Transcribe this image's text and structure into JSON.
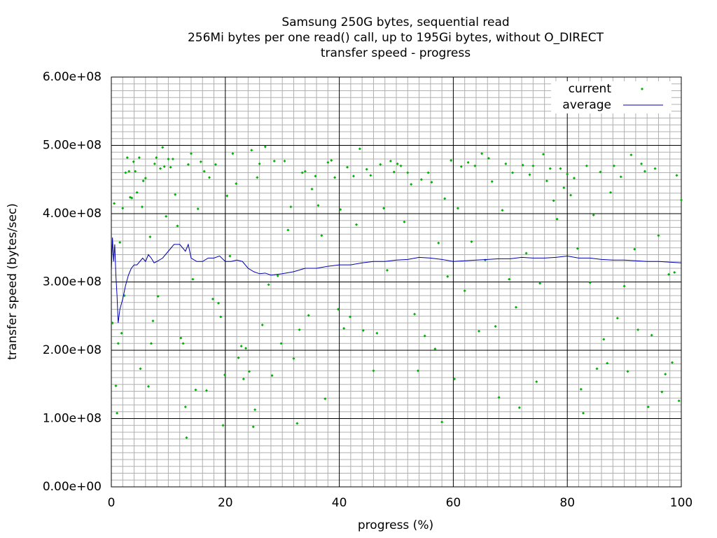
{
  "chart_data": {
    "type": "scatter",
    "title": [
      "Samsung 250G bytes, sequential read",
      "256Mi bytes per one read() call, up to 195Gi bytes, without O_DIRECT",
      "transfer speed - progress"
    ],
    "xlabel": "progress (%)",
    "ylabel": "transfer speed (bytes/sec)",
    "xlim": [
      0,
      100
    ],
    "xticks": [
      0,
      20,
      40,
      60,
      80,
      100
    ],
    "ylim": [
      0,
      600000000.0
    ],
    "yticks": [
      {
        "value": 0,
        "label": "0.00e+00"
      },
      {
        "value": 100000000.0,
        "label": "1.00e+08"
      },
      {
        "value": 200000000.0,
        "label": "2.00e+08"
      },
      {
        "value": 300000000.0,
        "label": "3.00e+08"
      },
      {
        "value": 400000000.0,
        "label": "4.00e+08"
      },
      {
        "value": 500000000.0,
        "label": "5.00e+08"
      },
      {
        "value": 600000000.0,
        "label": "6.00e+08"
      }
    ],
    "grid": true,
    "minor_grid_divisions": 10,
    "legend": "top-right",
    "series": [
      {
        "name": "current",
        "color": "#00b000",
        "style": "points",
        "x": [
          0.2,
          0.5,
          0.8,
          1,
          1.2,
          1.5,
          1.8,
          2,
          2.3,
          2.5,
          2.8,
          3.1,
          3.3,
          3.6,
          3.9,
          4.2,
          4.5,
          4.9,
          5.1,
          5.4,
          5.6,
          6,
          6.5,
          6.8,
          7,
          7.3,
          7.6,
          7.9,
          8.2,
          8.6,
          9,
          9.3,
          9.6,
          10,
          10.4,
          10.8,
          11.2,
          11.6,
          12.2,
          12.6,
          13,
          13.2,
          13.5,
          14,
          14.3,
          14.8,
          15.2,
          15.7,
          16.3,
          16.7,
          17.2,
          17.8,
          18.3,
          18.8,
          19.2,
          19.6,
          19.9,
          20.3,
          20.8,
          21.3,
          21.9,
          22.3,
          22.8,
          23.2,
          23.6,
          24.2,
          24.6,
          24.9,
          25.2,
          25.6,
          26,
          26.5,
          27,
          27.6,
          28.2,
          28.6,
          29.2,
          29.8,
          30.4,
          31,
          31.5,
          32,
          32.6,
          33,
          33.5,
          34,
          34.6,
          35.2,
          35.8,
          36.3,
          36.9,
          37.5,
          38,
          38.6,
          39.2,
          39.8,
          40.2,
          40.8,
          41.4,
          41.9,
          42.5,
          43,
          43.6,
          44.2,
          44.8,
          45.5,
          46,
          46.6,
          47.2,
          47.8,
          48.4,
          49,
          49.6,
          50.2,
          50.8,
          51.4,
          52,
          52.6,
          53.2,
          53.8,
          54.4,
          55,
          55.6,
          56.2,
          56.8,
          57.4,
          58,
          58.5,
          59,
          59.6,
          60.2,
          60.8,
          61.4,
          62,
          62.6,
          63.2,
          63.8,
          64.5,
          65,
          65.6,
          66.2,
          66.8,
          67.4,
          68,
          68.6,
          69.2,
          69.8,
          70.4,
          71,
          71.6,
          72.2,
          72.8,
          73.4,
          74,
          74.6,
          75.2,
          75.8,
          76.4,
          77,
          77.6,
          78.2,
          78.8,
          79.4,
          80,
          80.6,
          81.2,
          81.8,
          82.4,
          82.8,
          83.4,
          84,
          84.6,
          85.2,
          85.8,
          86.4,
          87,
          87.6,
          88.2,
          88.8,
          89.4,
          90,
          90.6,
          91.2,
          91.8,
          92.4,
          93,
          93.6,
          94.2,
          94.8,
          95.4,
          96,
          96.6,
          97.2,
          97.8,
          98.4,
          98.8,
          99.2,
          99.6,
          100
        ],
        "values": [
          240000000.0,
          415000000.0,
          148000000.0,
          108000000.0,
          210000000.0,
          358000000.0,
          225000000.0,
          408000000.0,
          280000000.0,
          460000000.0,
          482000000.0,
          462000000.0,
          424000000.0,
          423000000.0,
          476000000.0,
          462000000.0,
          431000000.0,
          482000000.0,
          173000000.0,
          410000000.0,
          448000000.0,
          452000000.0,
          147000000.0,
          366000000.0,
          210000000.0,
          243000000.0,
          473000000.0,
          482000000.0,
          279000000.0,
          466000000.0,
          497000000.0,
          469000000.0,
          396000000.0,
          480000000.0,
          468000000.0,
          480000000.0,
          428000000.0,
          382000000.0,
          218000000.0,
          210000000.0,
          117000000.0,
          72000000.0,
          472000000.0,
          488000000.0,
          304000000.0,
          142000000.0,
          407000000.0,
          476000000.0,
          462000000.0,
          141000000.0,
          453000000.0,
          275000000.0,
          472000000.0,
          269000000.0,
          249000000.0,
          90000000.0,
          164000000.0,
          426000000.0,
          338000000.0,
          488000000.0,
          444000000.0,
          189000000.0,
          206000000.0,
          158000000.0,
          203000000.0,
          169000000.0,
          493000000.0,
          88000000.0,
          113000000.0,
          453000000.0,
          473000000.0,
          237000000.0,
          498000000.0,
          296000000.0,
          163000000.0,
          477000000.0,
          309000000.0,
          210000000.0,
          477000000.0,
          376000000.0,
          410000000.0,
          188000000.0,
          93000000.0,
          230000000.0,
          460000000.0,
          462000000.0,
          251000000.0,
          436000000.0,
          455000000.0,
          412000000.0,
          368000000.0,
          129000000.0,
          475000000.0,
          478000000.0,
          453000000.0,
          260000000.0,
          406000000.0,
          232000000.0,
          468000000.0,
          249000000.0,
          455000000.0,
          384000000.0,
          495000000.0,
          229000000.0,
          465000000.0,
          456000000.0,
          170000000.0,
          225000000.0,
          472000000.0,
          408000000.0,
          317000000.0,
          477000000.0,
          461000000.0,
          473000000.0,
          470000000.0,
          388000000.0,
          460000000.0,
          443000000.0,
          253000000.0,
          170000000.0,
          450000000.0,
          221000000.0,
          460000000.0,
          446000000.0,
          202000000.0,
          357000000.0,
          95000000.0,
          422000000.0,
          308000000.0,
          478000000.0,
          158000000.0,
          408000000.0,
          469000000.0,
          287000000.0,
          475000000.0,
          359000000.0,
          470000000.0,
          228000000.0,
          488000000.0,
          332000000.0,
          481000000.0,
          447000000.0,
          235000000.0,
          131000000.0,
          405000000.0,
          473000000.0,
          304000000.0,
          460000000.0,
          263000000.0,
          116000000.0,
          471000000.0,
          342000000.0,
          457000000.0,
          470000000.0,
          154000000.0,
          298000000.0,
          487000000.0,
          448000000.0,
          466000000.0,
          419000000.0,
          392000000.0,
          466000000.0,
          438000000.0,
          458000000.0,
          427000000.0,
          452000000.0,
          349000000.0,
          143000000.0,
          108000000.0,
          470000000.0,
          299000000.0,
          398000000.0,
          173000000.0,
          461000000.0,
          216000000.0,
          181000000.0,
          431000000.0,
          470000000.0,
          247000000.0,
          454000000.0,
          294000000.0,
          169000000.0,
          486000000.0,
          348000000.0,
          230000000.0,
          473000000.0,
          462000000.0,
          117000000.0,
          222000000.0,
          466000000.0,
          368000000.0,
          139000000.0,
          165000000.0,
          311000000.0,
          182000000.0,
          314000000.0,
          456000000.0,
          126000000.0,
          420000000.0
        ]
      },
      {
        "name": "average",
        "color": "#0000b0",
        "style": "line",
        "x": [
          0,
          0.2,
          0.4,
          0.6,
          0.8,
          1,
          1.2,
          1.5,
          2,
          2.5,
          3,
          3.5,
          4,
          4.5,
          5,
          5.5,
          6,
          6.5,
          7,
          7.5,
          8,
          9,
          10,
          11,
          12,
          13,
          13.5,
          14,
          15,
          16,
          17,
          18,
          19,
          20,
          21,
          22,
          23,
          24,
          25,
          26,
          27,
          28,
          30,
          32,
          34,
          36,
          38,
          40,
          42,
          44,
          46,
          48,
          50,
          52,
          54,
          56,
          58,
          60,
          62,
          64,
          66,
          68,
          70,
          72,
          74,
          76,
          78,
          80,
          82,
          84,
          86,
          88,
          90,
          92,
          94,
          96,
          98,
          100
        ],
        "values": [
          315000000.0,
          365000000.0,
          330000000.0,
          355000000.0,
          310000000.0,
          280000000.0,
          240000000.0,
          260000000.0,
          275000000.0,
          295000000.0,
          310000000.0,
          320000000.0,
          325000000.0,
          325000000.0,
          330000000.0,
          335000000.0,
          330000000.0,
          340000000.0,
          335000000.0,
          328000000.0,
          330000000.0,
          335000000.0,
          345000000.0,
          355000000.0,
          355000000.0,
          345000000.0,
          355000000.0,
          335000000.0,
          330000000.0,
          330000000.0,
          335000000.0,
          335000000.0,
          338000000.0,
          330000000.0,
          330000000.0,
          332000000.0,
          330000000.0,
          320000000.0,
          315000000.0,
          312000000.0,
          313000000.0,
          310000000.0,
          312000000.0,
          315000000.0,
          320000000.0,
          320000000.0,
          323000000.0,
          325000000.0,
          325000000.0,
          328000000.0,
          330000000.0,
          330000000.0,
          332000000.0,
          333000000.0,
          336000000.0,
          335000000.0,
          333000000.0,
          330000000.0,
          331000000.0,
          332000000.0,
          333000000.0,
          334000000.0,
          334000000.0,
          336000000.0,
          335000000.0,
          335000000.0,
          336000000.0,
          338000000.0,
          335000000.0,
          335000000.0,
          333000000.0,
          332000000.0,
          332000000.0,
          331000000.0,
          330000000.0,
          330000000.0,
          329000000.0,
          328000000.0
        ]
      }
    ]
  }
}
